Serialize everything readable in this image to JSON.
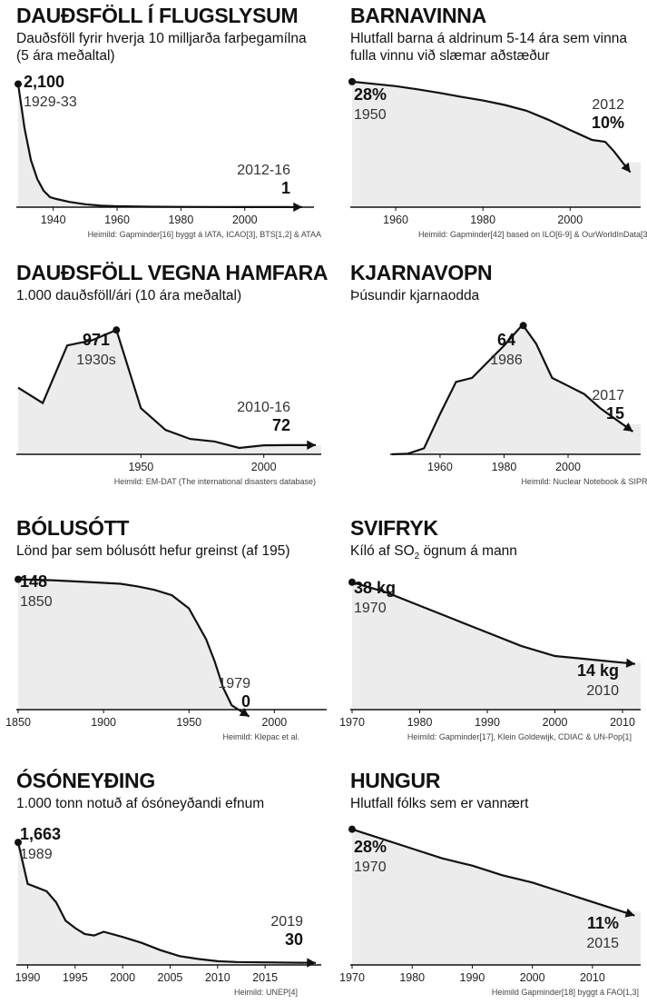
{
  "chart_data": [
    {
      "type": "area",
      "title": "DAUÐSFÖLL Í FLUGSLYSUM",
      "subtitle": "Dauðsföll fyrir hverja 10 milljarða farþegamílna (5 ára meðaltal)",
      "source": "Heimild: Gapminder[16] byggt á IATA, ICAO[3], BTS[1,2] & ATAA",
      "xlim": [
        1929,
        2016
      ],
      "ylim": [
        0,
        2200
      ],
      "xticks": [
        1940,
        1960,
        1980,
        2000
      ],
      "x": [
        1929,
        1931,
        1933,
        1935,
        1937,
        1939,
        1941,
        1945,
        1950,
        1955,
        1960,
        1970,
        1980,
        1990,
        2000,
        2010,
        2014
      ],
      "y": [
        2100,
        1350,
        800,
        480,
        280,
        170,
        140,
        90,
        50,
        25,
        15,
        8,
        5,
        3,
        2,
        1,
        1
      ],
      "start": {
        "value": "2,100",
        "period": "1929-33"
      },
      "end": {
        "value": "1",
        "period": "2012-16"
      }
    },
    {
      "type": "area",
      "title": "BARNAVINNA",
      "subtitle": "Hlutfall barna á aldrinum 5-14 ára sem vinna fulla vinnu við slæmar aðstæður",
      "source": "Heimild: Gapminder[42] based on ILO[6-9] & OurWorldInData[3]",
      "xlim": [
        1950,
        2012
      ],
      "ylim": [
        0,
        30
      ],
      "xticks": [
        1960,
        1980,
        2000
      ],
      "x": [
        1950,
        1955,
        1960,
        1965,
        1970,
        1975,
        1980,
        1985,
        1990,
        1995,
        2000,
        2005,
        2008,
        2010,
        2012
      ],
      "y": [
        28,
        27.5,
        27,
        26.3,
        25.5,
        24.6,
        23.8,
        22.8,
        21.5,
        19.5,
        17.2,
        15,
        14.6,
        12.5,
        10
      ],
      "start": {
        "value": "28%",
        "period": "1950"
      },
      "end": {
        "value": "10%",
        "period": "2012"
      }
    },
    {
      "type": "area",
      "title": "DAUÐSFÖLL VEGNA HAMFARA",
      "subtitle": "1.000 dauðsföll/ári (10 ára meðaltal)",
      "source": "Heimild: EM-DAT (The international disasters database)",
      "xlim": [
        1900,
        2016
      ],
      "ylim": [
        0,
        1100
      ],
      "xticks": [
        1950,
        2000
      ],
      "x": [
        1900,
        1910,
        1920,
        1930,
        1940,
        1950,
        1960,
        1970,
        1980,
        1990,
        2000,
        2010,
        2016
      ],
      "y": [
        520,
        400,
        850,
        890,
        971,
        360,
        190,
        120,
        100,
        50,
        70,
        72,
        72
      ],
      "start": {
        "value": "971",
        "period": "1930s"
      },
      "end": {
        "value": "72",
        "period": "2010-16"
      }
    },
    {
      "type": "area",
      "title": "KJARNAVOPN",
      "subtitle": "Þúsundir kjarnaodda",
      "source": "Heimild: Nuclear Notebook & SIPRI",
      "xlim": [
        1945,
        2017
      ],
      "ylim": [
        0,
        70
      ],
      "xticks": [
        1960,
        1980,
        2000
      ],
      "x": [
        1945,
        1950,
        1955,
        1960,
        1965,
        1970,
        1975,
        1980,
        1985,
        1986,
        1990,
        1995,
        2000,
        2005,
        2010,
        2017
      ],
      "y": [
        0,
        0.3,
        3,
        20,
        36,
        38,
        46,
        54,
        63,
        64,
        55,
        38,
        34,
        30,
        23,
        15
      ],
      "start": {
        "value": "64",
        "period": "1986"
      },
      "end": {
        "value": "15",
        "period": "2017"
      }
    },
    {
      "type": "area",
      "title": "BÓLUSÓTT",
      "subtitle": "Lönd þar sem bólusótt hefur greinst (af 195)",
      "source": "Heimild: Klepac et al.",
      "xlim": [
        1850,
        2020
      ],
      "ylim": [
        0,
        160
      ],
      "xticks": [
        1850,
        1900,
        1950,
        2000
      ],
      "x": [
        1850,
        1870,
        1890,
        1900,
        1910,
        1920,
        1930,
        1940,
        1950,
        1960,
        1965,
        1970,
        1975,
        1979
      ],
      "y": [
        148,
        147,
        145,
        144,
        143,
        140,
        136,
        130,
        115,
        80,
        55,
        25,
        5,
        0
      ],
      "start": {
        "value": "148",
        "period": "1850"
      },
      "end": {
        "value": "0",
        "period": "1979"
      }
    },
    {
      "type": "area",
      "title": "SVIFRYK",
      "subtitle_parts": [
        "Kíló af SO",
        "2",
        " ögnum á mann"
      ],
      "source": "Heimild: Gapminder[17], Klein Goldewijk, CDIAC & UN-Pop[1]",
      "xlim": [
        1970,
        2010
      ],
      "ylim": [
        0,
        42
      ],
      "xticks": [
        1970,
        1980,
        1990,
        2000,
        2010
      ],
      "x": [
        1970,
        1975,
        1980,
        1985,
        1990,
        1995,
        2000,
        2005,
        2010
      ],
      "y": [
        38,
        35,
        31,
        27,
        23,
        19,
        16,
        15,
        14
      ],
      "start": {
        "value": "38 kg",
        "period": "1970"
      },
      "end": {
        "value": "14 kg",
        "period": "2010"
      }
    },
    {
      "type": "area",
      "title": "ÓSÓNEYÐING",
      "subtitle": "1.000 tonn notuð af ósóneyðandi efnum",
      "source": "Heimild: UNEP[4]",
      "xlim": [
        1989,
        2019
      ],
      "ylim": [
        0,
        1800
      ],
      "xticks": [
        1990,
        1995,
        2000,
        2005,
        2010,
        2015
      ],
      "x": [
        1989,
        1990,
        1991,
        1992,
        1993,
        1994,
        1995,
        1996,
        1997,
        1998,
        2000,
        2002,
        2004,
        2006,
        2008,
        2010,
        2012,
        2015,
        2019
      ],
      "y": [
        1663,
        1100,
        1050,
        1000,
        850,
        600,
        500,
        420,
        400,
        450,
        380,
        300,
        200,
        120,
        80,
        50,
        40,
        35,
        30
      ],
      "start": {
        "value": "1,663",
        "period": "1989"
      },
      "end": {
        "value": "30",
        "period": "2019"
      }
    },
    {
      "type": "area",
      "title": "HUNGUR",
      "subtitle": "Hlutfall fólks sem er vannært",
      "source": "Heimild Gapminder[18] byggt á FAO[1,3]",
      "xlim": [
        1970,
        2015
      ],
      "ylim": [
        0,
        30
      ],
      "xticks": [
        1970,
        1980,
        1990,
        2000,
        2010
      ],
      "x": [
        1970,
        1975,
        1980,
        1985,
        1990,
        1995,
        2000,
        2005,
        2010,
        2015
      ],
      "y": [
        28,
        26,
        24,
        22,
        20.5,
        18.5,
        17,
        15,
        13,
        11
      ],
      "start": {
        "value": "28%",
        "period": "1970"
      },
      "end": {
        "value": "11%",
        "period": "2015"
      }
    }
  ]
}
